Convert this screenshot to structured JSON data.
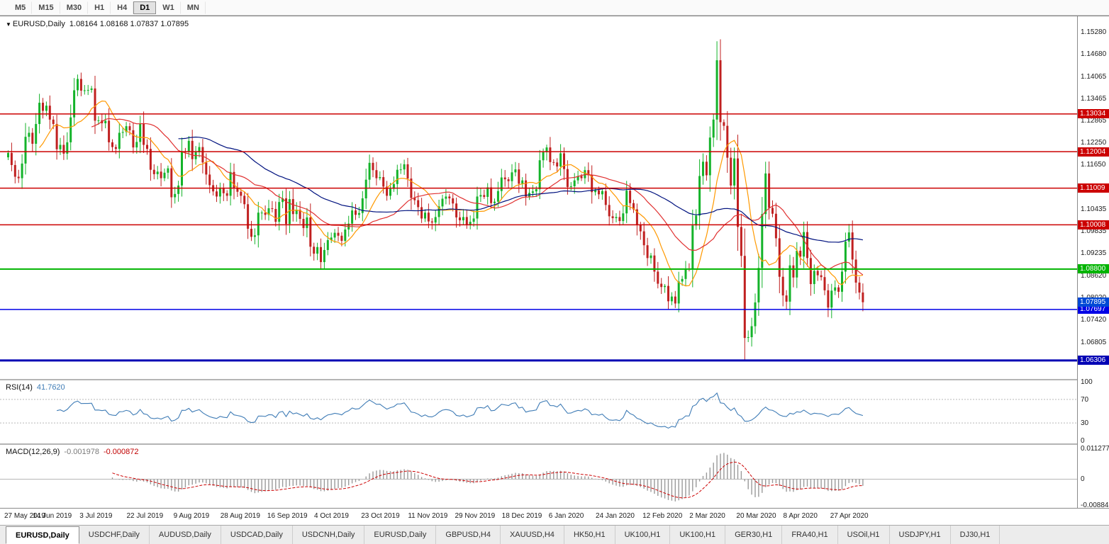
{
  "toolbar": {
    "timeframes": [
      "M5",
      "M15",
      "M30",
      "H1",
      "H4",
      "D1",
      "W1",
      "MN"
    ],
    "active": "D1"
  },
  "chart": {
    "marker_glyph": "▼",
    "symbol_title": "EURUSD,Daily",
    "quote": "1.08164 1.08168 1.07837 1.07895"
  },
  "chart_data": {
    "type": "candlestick",
    "symbol": "EURUSD",
    "timeframe": "Daily",
    "title": "EURUSD,Daily 1.08164 1.08168 1.07837 1.07895",
    "price_range": {
      "top": 1.157,
      "bottom": 1.058
    },
    "first_open": 1.1185,
    "closes": [
      1.1197,
      1.1164,
      1.1132,
      1.1128,
      1.1168,
      1.1241,
      1.1252,
      1.1222,
      1.1276,
      1.1334,
      1.1312,
      1.1326,
      1.1288,
      1.1276,
      1.1207,
      1.1219,
      1.1195,
      1.1226,
      1.1294,
      1.1368,
      1.1399,
      1.1367,
      1.1368,
      1.1369,
      1.1373,
      1.1285,
      1.1286,
      1.1278,
      1.1285,
      1.1226,
      1.1213,
      1.1208,
      1.1252,
      1.1254,
      1.127,
      1.1259,
      1.1212,
      1.1227,
      1.1277,
      1.1219,
      1.1208,
      1.1151,
      1.1139,
      1.1146,
      1.1128,
      1.1143,
      1.1155,
      1.1076,
      1.1085,
      1.1108,
      1.1202,
      1.12,
      1.123,
      1.118,
      1.1199,
      1.1213,
      1.1171,
      1.1138,
      1.1109,
      1.1092,
      1.1078,
      1.11,
      1.1087,
      1.108,
      1.1145,
      1.1101,
      1.1091,
      1.108,
      1.1057,
      1.099,
      1.0968,
      1.0972,
      1.1034,
      1.1034,
      1.1028,
      1.1046,
      1.1044,
      1.1009,
      1.1063,
      1.1073,
      1.1003,
      1.1071,
      1.103,
      1.1042,
      1.1017,
      1.0992,
      1.1021,
      1.0941,
      1.0922,
      1.094,
      1.0899,
      1.0932,
      1.0959,
      1.0966,
      1.0979,
      1.0971,
      1.0957,
      1.0988,
      1.1004,
      1.104,
      1.1028,
      1.1033,
      1.1073,
      1.1124,
      1.117,
      1.115,
      1.1128,
      1.1131,
      1.1105,
      1.108,
      1.1099,
      1.1112,
      1.1151,
      1.1152,
      1.1166,
      1.1127,
      1.1074,
      1.1068,
      1.1049,
      1.1018,
      1.1034,
      1.101,
      1.1007,
      1.1022,
      1.1051,
      1.1072,
      1.1078,
      1.1073,
      1.1059,
      1.1021,
      1.1013,
      1.1022,
      1.1001,
      1.1009,
      1.1018,
      1.1078,
      1.1082,
      1.1077,
      1.1103,
      1.106,
      1.1064,
      1.1093,
      1.113,
      1.1125,
      1.112,
      1.1144,
      1.1152,
      1.1113,
      1.1122,
      1.1078,
      1.1088,
      1.1092,
      1.1098,
      1.1177,
      1.1199,
      1.1212,
      1.1172,
      1.1171,
      1.116,
      1.1196,
      1.1153,
      1.1104,
      1.1106,
      1.1122,
      1.1134,
      1.1128,
      1.115,
      1.1136,
      1.109,
      1.1095,
      1.1084,
      1.1093,
      1.1055,
      1.1024,
      1.1019,
      1.1022,
      1.1011,
      1.1032,
      1.1094,
      1.106,
      1.1043,
      1.1,
      1.0983,
      1.0945,
      1.091,
      1.0917,
      1.0873,
      1.084,
      1.0831,
      1.0834,
      1.0792,
      1.0805,
      1.0786,
      1.0846,
      1.0853,
      1.0881,
      1.088,
      1.0999,
      1.1026,
      1.1134,
      1.1173,
      1.1136,
      1.1239,
      1.1288,
      1.145,
      1.1281,
      1.1271,
      1.1184,
      1.1108,
      1.1182,
      1.0995,
      1.0916,
      1.0692,
      1.0694,
      1.0724,
      1.0789,
      1.0883,
      1.103,
      1.1141,
      1.1047,
      1.1031,
      1.0964,
      1.0859,
      1.0808,
      1.0791,
      1.089,
      1.0857,
      1.093,
      1.0914,
      1.0981,
      1.091,
      1.0839,
      1.0875,
      1.0863,
      1.0858,
      1.0822,
      1.0775,
      1.0821,
      1.083,
      1.0818,
      1.0873,
      1.0955,
      1.098,
      1.0906,
      1.0843,
      1.0816,
      1.07895
    ],
    "colors": {
      "up": "#14b32a",
      "down": "#c02020"
    },
    "moving_averages": [
      {
        "period": 10,
        "color": "#ff9900"
      },
      {
        "period": 25,
        "color": "#e03030"
      },
      {
        "period": 50,
        "color": "#00127f"
      }
    ],
    "hlines": [
      {
        "price": 1.13034,
        "label": "1.13034",
        "color": "#cc0000",
        "width": 1.5
      },
      {
        "price": 1.12004,
        "label": "1.12004",
        "color": "#cc0000",
        "width": 1.5
      },
      {
        "price": 1.11009,
        "label": "1.11009",
        "color": "#cc0000",
        "width": 1.5
      },
      {
        "price": 1.10008,
        "label": "1.10008",
        "color": "#cc0000",
        "width": 1.5
      },
      {
        "price": 1.088,
        "label": "1.08800",
        "color": "#00b400",
        "width": 2
      },
      {
        "price": 1.07697,
        "label": "1.07697",
        "color": "#0000e6",
        "width": 1.5
      },
      {
        "price": 1.06306,
        "label": "1.06306",
        "color": "#0000b4",
        "width": 3
      }
    ],
    "current_price": {
      "value": 1.07895,
      "label": "1.07895",
      "color": "#0049d6"
    },
    "y_axis_ticks": [
      "1.15280",
      "1.14680",
      "1.14065",
      "1.13465",
      "1.12865",
      "1.12250",
      "1.11650",
      "1.10435",
      "1.09835",
      "1.09235",
      "1.08620",
      "1.08020",
      "1.07420",
      "1.06805"
    ],
    "x_labels": [
      "27 May 2019",
      "14 Jun 2019",
      "3 Jul 2019",
      "22 Jul 2019",
      "9 Aug 2019",
      "28 Aug 2019",
      "16 Sep 2019",
      "4 Oct 2019",
      "23 Oct 2019",
      "11 Nov 2019",
      "29 Nov 2019",
      "18 Dec 2019",
      "6 Jan 2020",
      "24 Jan 2020",
      "12 Feb 2020",
      "2 Mar 2020",
      "20 Mar 2020",
      "8 Apr 2020",
      "27 Apr 2020"
    ],
    "indicators": {
      "rsi": {
        "label": "RSI(14)",
        "value": "41.7620",
        "period": 14,
        "levels": [
          100,
          70,
          30,
          0
        ],
        "dashed_levels": [
          70,
          30
        ],
        "color": "#3f7cb6"
      },
      "macd": {
        "label": "MACD(12,26,9)",
        "value_main": "-0.001978",
        "value_signal": "-0.000872",
        "axis_labels": [
          "0.011277",
          "0",
          "-0.008845"
        ],
        "range": {
          "top": 0.0113,
          "bottom": -0.0089
        },
        "hist_color": "#9a9a9a",
        "signal_color": "#cc0000"
      }
    }
  },
  "tabs": {
    "items": [
      {
        "label": "EURUSD,Daily",
        "active": true
      },
      {
        "label": "USDCHF,Daily",
        "active": false
      },
      {
        "label": "AUDUSD,Daily",
        "active": false
      },
      {
        "label": "USDCAD,Daily",
        "active": false
      },
      {
        "label": "USDCNH,Daily",
        "active": false
      },
      {
        "label": "EURUSD,Daily",
        "active": false
      },
      {
        "label": "GBPUSD,H4",
        "active": false
      },
      {
        "label": "XAUUSD,H4",
        "active": false
      },
      {
        "label": "HK50,H1",
        "active": false
      },
      {
        "label": "UK100,H1",
        "active": false
      },
      {
        "label": "UK100,H1",
        "active": false
      },
      {
        "label": "GER30,H1",
        "active": false
      },
      {
        "label": "FRA40,H1",
        "active": false
      },
      {
        "label": "USOil,H1",
        "active": false
      },
      {
        "label": "USDJPY,H1",
        "active": false
      },
      {
        "label": "DJ30,H1",
        "active": false
      }
    ]
  }
}
